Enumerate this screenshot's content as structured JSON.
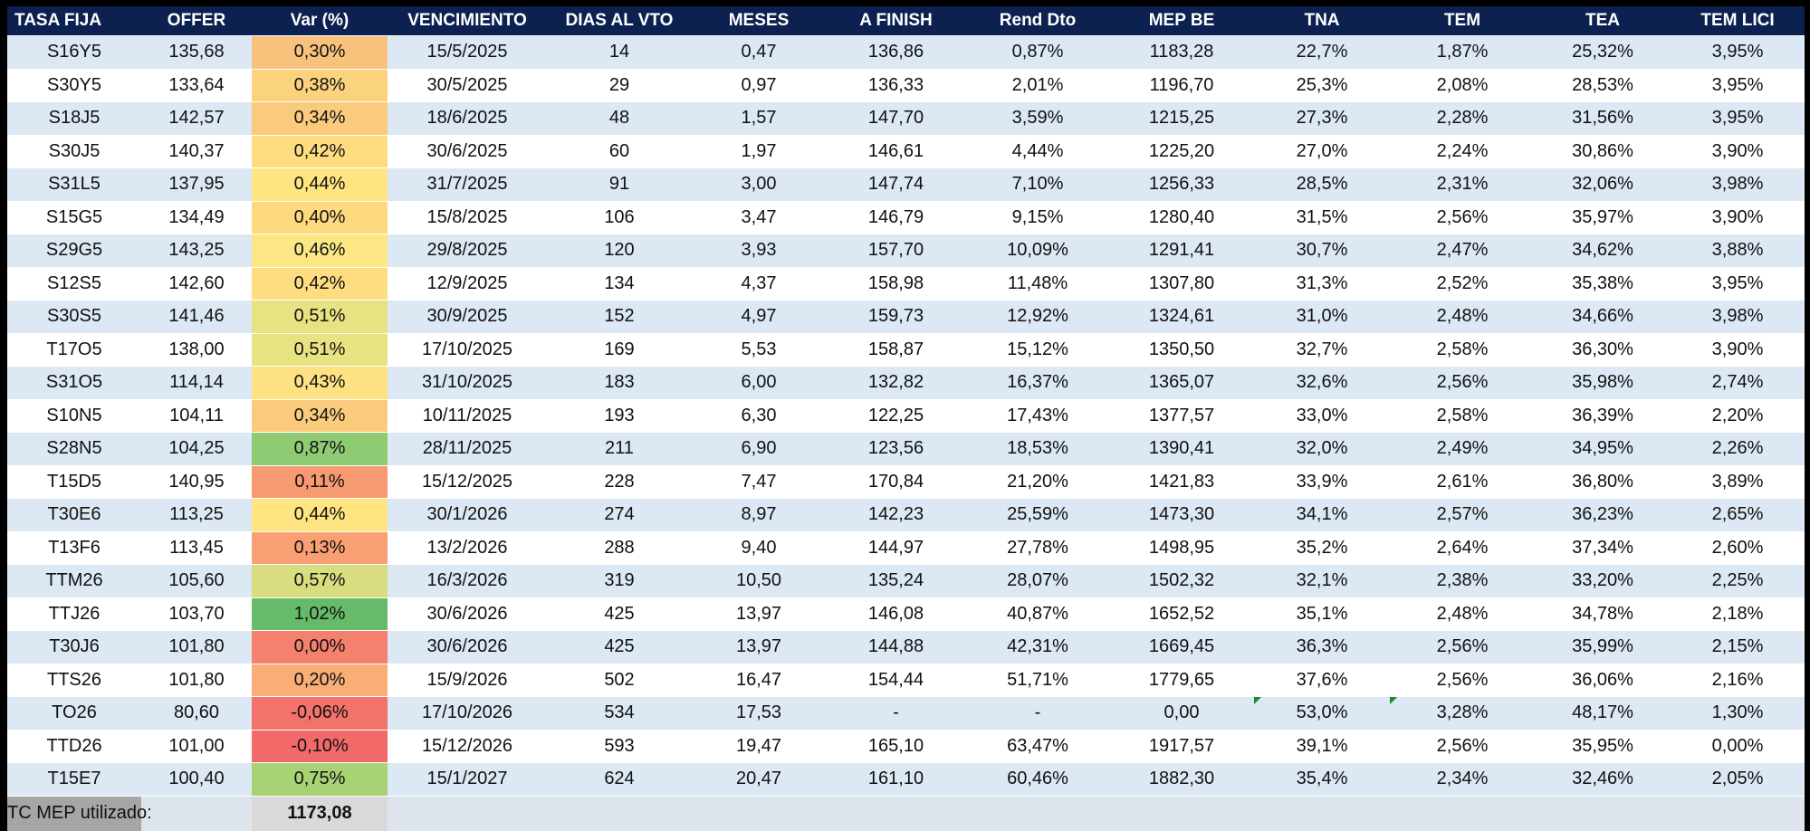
{
  "headers": [
    "TASA FIJA",
    "OFFER",
    "Var (%)",
    "VENCIMIENTO",
    "DIAS AL VTO",
    "MESES",
    "A FINISH",
    "Rend Dto",
    "MEP BE",
    "TNA",
    "TEM",
    "TEA",
    "TEM LICI"
  ],
  "rows": [
    {
      "ticker": "S16Y5",
      "offer": "135,68",
      "var": "0,30%",
      "var_color": "#f9c27c",
      "vto": "15/5/2025",
      "dias": "14",
      "meses": "0,47",
      "finish": "136,86",
      "rend": "0,87%",
      "mep": "1183,28",
      "tna": "22,7%",
      "tem": "1,87%",
      "tea": "25,32%",
      "temlici": "3,95%"
    },
    {
      "ticker": "S30Y5",
      "offer": "133,64",
      "var": "0,38%",
      "var_color": "#fbd27e",
      "vto": "30/5/2025",
      "dias": "29",
      "meses": "0,97",
      "finish": "136,33",
      "rend": "2,01%",
      "mep": "1196,70",
      "tna": "25,3%",
      "tem": "2,08%",
      "tea": "28,53%",
      "temlici": "3,95%"
    },
    {
      "ticker": "S18J5",
      "offer": "142,57",
      "var": "0,34%",
      "var_color": "#facb7d",
      "vto": "18/6/2025",
      "dias": "48",
      "meses": "1,57",
      "finish": "147,70",
      "rend": "3,59%",
      "mep": "1215,25",
      "tna": "27,3%",
      "tem": "2,28%",
      "tea": "31,56%",
      "temlici": "3,95%"
    },
    {
      "ticker": "S30J5",
      "offer": "140,37",
      "var": "0,42%",
      "var_color": "#fedd81",
      "vto": "30/6/2025",
      "dias": "60",
      "meses": "1,97",
      "finish": "146,61",
      "rend": "4,44%",
      "mep": "1225,20",
      "tna": "27,0%",
      "tem": "2,24%",
      "tea": "30,86%",
      "temlici": "3,90%"
    },
    {
      "ticker": "S31L5",
      "offer": "137,95",
      "var": "0,44%",
      "var_color": "#fee582",
      "vto": "31/7/2025",
      "dias": "91",
      "meses": "3,00",
      "finish": "147,74",
      "rend": "7,10%",
      "mep": "1256,33",
      "tna": "28,5%",
      "tem": "2,31%",
      "tea": "32,06%",
      "temlici": "3,98%"
    },
    {
      "ticker": "S15G5",
      "offer": "134,49",
      "var": "0,40%",
      "var_color": "#fdd980",
      "vto": "15/8/2025",
      "dias": "106",
      "meses": "3,47",
      "finish": "146,79",
      "rend": "9,15%",
      "mep": "1280,40",
      "tna": "31,5%",
      "tem": "2,56%",
      "tea": "35,97%",
      "temlici": "3,90%"
    },
    {
      "ticker": "S29G5",
      "offer": "143,25",
      "var": "0,46%",
      "var_color": "#fbe783",
      "vto": "29/8/2025",
      "dias": "120",
      "meses": "3,93",
      "finish": "157,70",
      "rend": "10,09%",
      "mep": "1291,41",
      "tna": "30,7%",
      "tem": "2,47%",
      "tea": "34,62%",
      "temlici": "3,88%"
    },
    {
      "ticker": "S12S5",
      "offer": "142,60",
      "var": "0,42%",
      "var_color": "#fedd81",
      "vto": "12/9/2025",
      "dias": "134",
      "meses": "4,37",
      "finish": "158,98",
      "rend": "11,48%",
      "mep": "1307,80",
      "tna": "31,3%",
      "tem": "2,52%",
      "tea": "35,38%",
      "temlici": "3,95%"
    },
    {
      "ticker": "S30S5",
      "offer": "141,46",
      "var": "0,51%",
      "var_color": "#e8e382",
      "vto": "30/9/2025",
      "dias": "152",
      "meses": "4,97",
      "finish": "159,73",
      "rend": "12,92%",
      "mep": "1324,61",
      "tna": "31,0%",
      "tem": "2,48%",
      "tea": "34,66%",
      "temlici": "3,98%"
    },
    {
      "ticker": "T17O5",
      "offer": "138,00",
      "var": "0,51%",
      "var_color": "#e8e382",
      "vto": "17/10/2025",
      "dias": "169",
      "meses": "5,53",
      "finish": "158,87",
      "rend": "15,12%",
      "mep": "1350,50",
      "tna": "32,7%",
      "tem": "2,58%",
      "tea": "36,30%",
      "temlici": "3,90%"
    },
    {
      "ticker": "S31O5",
      "offer": "114,14",
      "var": "0,43%",
      "var_color": "#fee182",
      "vto": "31/10/2025",
      "dias": "183",
      "meses": "6,00",
      "finish": "132,82",
      "rend": "16,37%",
      "mep": "1365,07",
      "tna": "32,6%",
      "tem": "2,56%",
      "tea": "35,98%",
      "temlici": "2,74%"
    },
    {
      "ticker": "S10N5",
      "offer": "104,11",
      "var": "0,34%",
      "var_color": "#facb7d",
      "vto": "10/11/2025",
      "dias": "193",
      "meses": "6,30",
      "finish": "122,25",
      "rend": "17,43%",
      "mep": "1377,57",
      "tna": "33,0%",
      "tem": "2,58%",
      "tea": "36,39%",
      "temlici": "2,20%"
    },
    {
      "ticker": "S28N5",
      "offer": "104,25",
      "var": "0,87%",
      "var_color": "#8fcb73",
      "vto": "28/11/2025",
      "dias": "211",
      "meses": "6,90",
      "finish": "123,56",
      "rend": "18,53%",
      "mep": "1390,41",
      "tna": "32,0%",
      "tem": "2,49%",
      "tea": "34,95%",
      "temlici": "2,26%"
    },
    {
      "ticker": "T15D5",
      "offer": "140,95",
      "var": "0,11%",
      "var_color": "#f79a72",
      "vto": "15/12/2025",
      "dias": "228",
      "meses": "7,47",
      "finish": "170,84",
      "rend": "21,20%",
      "mep": "1421,83",
      "tna": "33,9%",
      "tem": "2,61%",
      "tea": "36,80%",
      "temlici": "3,89%"
    },
    {
      "ticker": "T30E6",
      "offer": "113,25",
      "var": "0,44%",
      "var_color": "#fee582",
      "vto": "30/1/2026",
      "dias": "274",
      "meses": "8,97",
      "finish": "142,23",
      "rend": "25,59%",
      "mep": "1473,30",
      "tna": "34,1%",
      "tem": "2,57%",
      "tea": "36,23%",
      "temlici": "2,65%"
    },
    {
      "ticker": "T13F6",
      "offer": "113,45",
      "var": "0,13%",
      "var_color": "#f89f73",
      "vto": "13/2/2026",
      "dias": "288",
      "meses": "9,40",
      "finish": "144,97",
      "rend": "27,78%",
      "mep": "1498,95",
      "tna": "35,2%",
      "tem": "2,64%",
      "tea": "37,34%",
      "temlici": "2,60%"
    },
    {
      "ticker": "TTM26",
      "offer": "105,60",
      "var": "0,57%",
      "var_color": "#d8de80",
      "vto": "16/3/2026",
      "dias": "319",
      "meses": "10,50",
      "finish": "135,24",
      "rend": "28,07%",
      "mep": "1502,32",
      "tna": "32,1%",
      "tem": "2,38%",
      "tea": "33,20%",
      "temlici": "2,25%"
    },
    {
      "ticker": "TTJ26",
      "offer": "103,70",
      "var": "1,02%",
      "var_color": "#66bb6a",
      "vto": "30/6/2026",
      "dias": "425",
      "meses": "13,97",
      "finish": "146,08",
      "rend": "40,87%",
      "mep": "1652,52",
      "tna": "35,1%",
      "tem": "2,48%",
      "tea": "34,78%",
      "temlici": "2,18%"
    },
    {
      "ticker": "T30J6",
      "offer": "101,80",
      "var": "0,00%",
      "var_color": "#f4806d",
      "vto": "30/6/2026",
      "dias": "425",
      "meses": "13,97",
      "finish": "144,88",
      "rend": "42,31%",
      "mep": "1669,45",
      "tna": "36,3%",
      "tem": "2,56%",
      "tea": "35,99%",
      "temlici": "2,15%"
    },
    {
      "ticker": "TTS26",
      "offer": "101,80",
      "var": "0,20%",
      "var_color": "#f8ae76",
      "vto": "15/9/2026",
      "dias": "502",
      "meses": "16,47",
      "finish": "154,44",
      "rend": "51,71%",
      "mep": "1779,65",
      "tna": "37,6%",
      "tem": "2,56%",
      "tea": "36,06%",
      "temlici": "2,16%"
    },
    {
      "ticker": "TO26",
      "offer": "80,60",
      "var": "-0,06%",
      "var_color": "#f3726b",
      "vto": "17/10/2026",
      "dias": "534",
      "meses": "17,53",
      "finish": "-",
      "rend": "-",
      "mep": "0,00",
      "tna": "53,0%",
      "tem": "3,28%",
      "tea": "48,17%",
      "temlici": "1,30%",
      "tna_flag": true,
      "tem_flag": true
    },
    {
      "ticker": "TTD26",
      "offer": "101,00",
      "var": "-0,10%",
      "var_color": "#f2696a",
      "vto": "15/12/2026",
      "dias": "593",
      "meses": "19,47",
      "finish": "165,10",
      "rend": "63,47%",
      "mep": "1917,57",
      "tna": "39,1%",
      "tem": "2,56%",
      "tea": "35,95%",
      "temlici": "0,00%"
    },
    {
      "ticker": "T15E7",
      "offer": "100,40",
      "var": "0,75%",
      "var_color": "#a8d375",
      "vto": "15/1/2027",
      "dias": "624",
      "meses": "20,47",
      "finish": "161,10",
      "rend": "60,46%",
      "mep": "1882,30",
      "tna": "35,4%",
      "tem": "2,34%",
      "tea": "32,46%",
      "temlici": "2,05%"
    }
  ],
  "footer": {
    "label": "TC MEP utilizado:",
    "value": "1173,08"
  },
  "colors": {
    "header_bg": "#0d2150",
    "row_odd": "#dce8f4",
    "row_even": "#ffffff",
    "flag": "#1b8a2a"
  }
}
